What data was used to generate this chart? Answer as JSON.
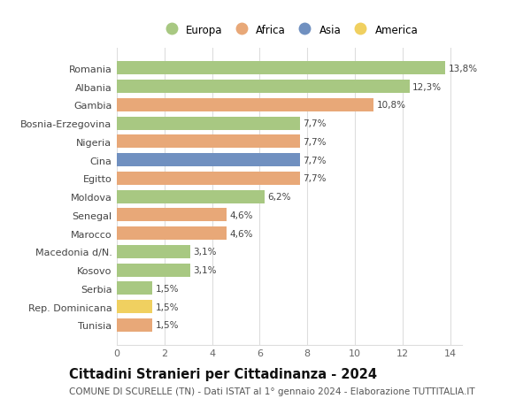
{
  "categories": [
    "Tunisia",
    "Rep. Dominicana",
    "Serbia",
    "Kosovo",
    "Macedonia d/N.",
    "Marocco",
    "Senegal",
    "Moldova",
    "Egitto",
    "Cina",
    "Nigeria",
    "Bosnia-Erzegovina",
    "Gambia",
    "Albania",
    "Romania"
  ],
  "values": [
    1.5,
    1.5,
    1.5,
    3.1,
    3.1,
    4.6,
    4.6,
    6.2,
    7.7,
    7.7,
    7.7,
    7.7,
    10.8,
    12.3,
    13.8
  ],
  "continents": [
    "Africa",
    "America",
    "Europa",
    "Europa",
    "Europa",
    "Africa",
    "Africa",
    "Europa",
    "Africa",
    "Asia",
    "Africa",
    "Europa",
    "Africa",
    "Europa",
    "Europa"
  ],
  "labels": [
    "1,5%",
    "1,5%",
    "1,5%",
    "3,1%",
    "3,1%",
    "4,6%",
    "4,6%",
    "6,2%",
    "7,7%",
    "7,7%",
    "7,7%",
    "7,7%",
    "10,8%",
    "12,3%",
    "13,8%"
  ],
  "continent_colors": {
    "Europa": "#a8c882",
    "Africa": "#e8a878",
    "Asia": "#7090c0",
    "America": "#f0d060"
  },
  "title": "Cittadini Stranieri per Cittadinanza - 2024",
  "subtitle": "COMUNE DI SCURELLE (TN) - Dati ISTAT al 1° gennaio 2024 - Elaborazione TUTTITALIA.IT",
  "xlim": [
    0,
    14.5
  ],
  "xticks": [
    0,
    2,
    4,
    6,
    8,
    10,
    12,
    14
  ],
  "legend_order": [
    "Europa",
    "Africa",
    "Asia",
    "America"
  ],
  "background_color": "#ffffff",
  "grid_color": "#dddddd",
  "bar_height": 0.72,
  "title_fontsize": 10.5,
  "subtitle_fontsize": 7.5,
  "label_fontsize": 7.5,
  "tick_fontsize": 8,
  "legend_fontsize": 8.5
}
